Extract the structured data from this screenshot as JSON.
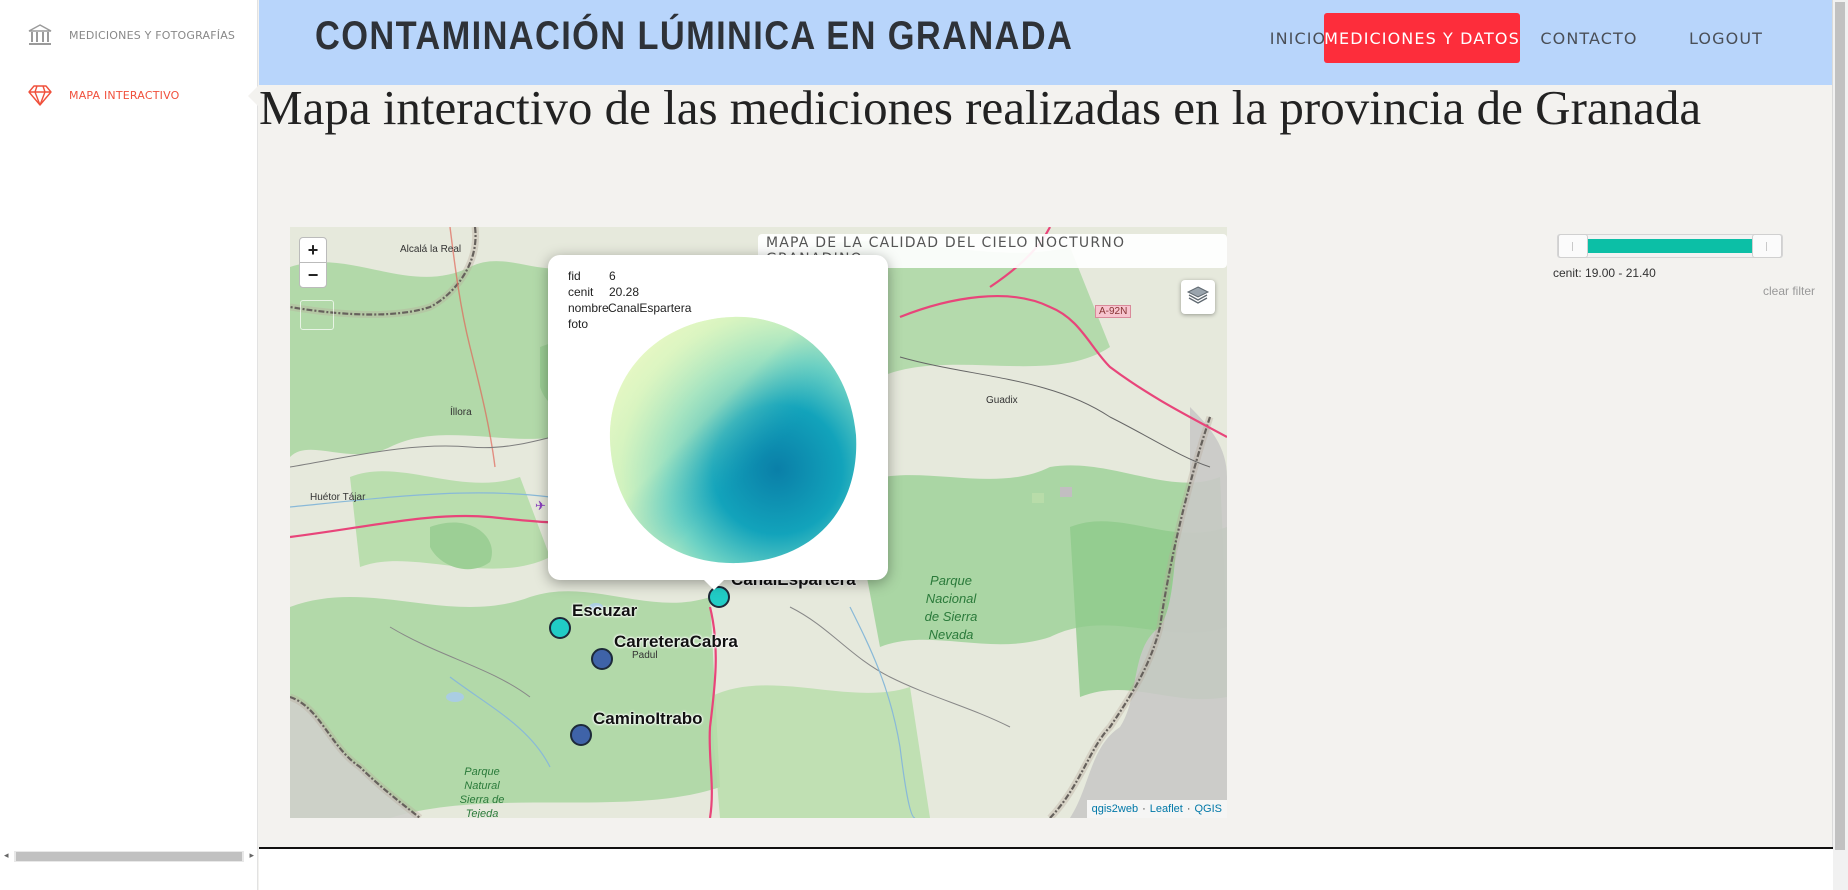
{
  "sidebar": {
    "items": [
      {
        "label": "MEDICIONES Y FOTOGRAFÍAS",
        "icon": "museum-icon",
        "active": false
      },
      {
        "label": "MAPA INTERACTIVO",
        "icon": "diamond-icon",
        "active": true
      }
    ]
  },
  "header": {
    "title": "CONTAMINACIÓN LÚMINICA EN GRANADA",
    "nav": [
      {
        "label": "INICIO",
        "active": false
      },
      {
        "label": "MEDICIONES Y DATOS",
        "active": true
      },
      {
        "label": "CONTACTO",
        "active": false
      },
      {
        "label": "LOGOUT",
        "active": false
      }
    ]
  },
  "page": {
    "heading": "Mapa interactivo de las mediciones realizadas en la provincia de Granada"
  },
  "map": {
    "title": "MAPA DE LA CALIDAD DEL CIELO NOCTURNO GRANADINO",
    "zoom_in": "+",
    "zoom_out": "−",
    "attribution": {
      "qgis2web": "qgis2web",
      "leaflet": "Leaflet",
      "qgis": "QGIS",
      "separator": "·"
    },
    "places": {
      "alcala": "Alcalá la Real",
      "illora": "Íllora",
      "huetor": "Huétor Tájar",
      "guadix": "Guadix",
      "padul": "Padul",
      "road": "A-92N"
    },
    "parks": {
      "sierra_nevada": [
        "Parque",
        "Nacional",
        "de Sierra",
        "Nevada"
      ],
      "tejeda": [
        "Parque",
        "Natural",
        "Sierra de",
        "Tejeda"
      ]
    },
    "markers": [
      {
        "name": "CanalEspartera",
        "color": "#21ccc6"
      },
      {
        "name": "Escuzar",
        "color": "#21ccc6"
      },
      {
        "name": "CarreteraCabra",
        "color": "#3f63a8"
      },
      {
        "name": "CaminoItrabo",
        "color": "#3f63a8"
      }
    ],
    "popup": {
      "fields": [
        {
          "key": "fid",
          "value": "6"
        },
        {
          "key": "cenit",
          "value": "20.28"
        },
        {
          "key": "nombre",
          "value": "CanalEspartera"
        },
        {
          "key": "foto",
          "value": ""
        }
      ]
    }
  },
  "filter": {
    "label": "cenit: 19.00 - 21.40",
    "clear": "clear filter",
    "min": 19.0,
    "max": 21.4,
    "low_fraction": 0.0,
    "high_fraction": 1.0,
    "range_color": "#0cbfa6"
  },
  "colors": {
    "header_bg": "#b8d5fb",
    "accent": "#fd2d3b",
    "sidebar_active": "#f0503c"
  }
}
